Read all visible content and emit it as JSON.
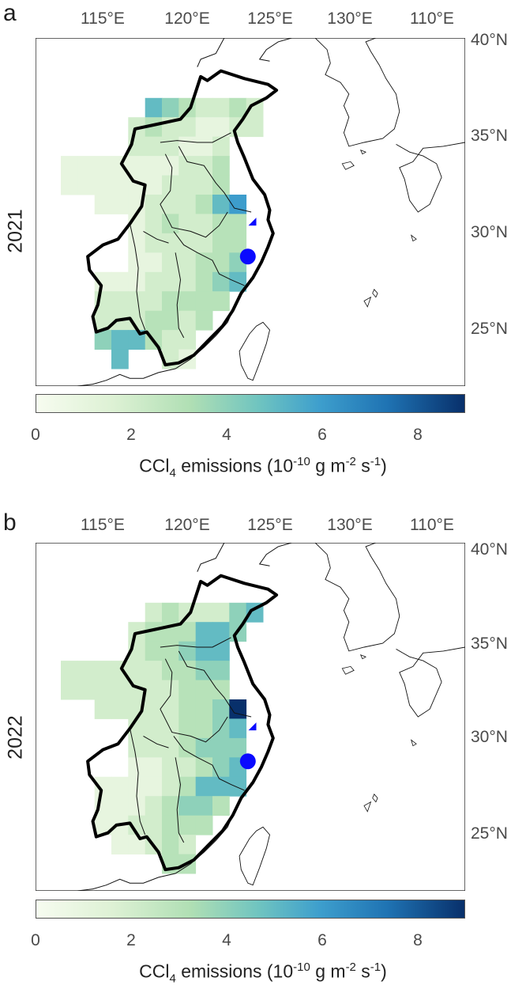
{
  "panels": [
    {
      "letter": "a",
      "year": "2021",
      "grid_key": "g2021",
      "colorbar_label": {
        "pre": "CCl",
        "sub": "4",
        "mid": " emissions (10",
        "sup1": "-10",
        "mid2": " g m",
        "sup2": "-2",
        "mid3": " s",
        "sup3": "-1",
        "end": ")"
      }
    },
    {
      "letter": "b",
      "year": "2022",
      "grid_key": "g2022",
      "colorbar_label": {
        "pre": "CCl",
        "sub": "4",
        "mid": " emissions (10",
        "sup1": "-10",
        "mid2": " g m",
        "sup2": "-2",
        "mid3": " s",
        "sup3": "-1",
        "end": ")"
      }
    }
  ],
  "lon_labels": [
    "115°E",
    "120°E",
    "125°E",
    "130°E",
    "110°E"
  ],
  "lat_labels": [
    "40°N",
    "35°N",
    "30°N",
    "25°N"
  ],
  "colorbar": {
    "min": 0,
    "max": 9,
    "ticks": [
      "0",
      "2",
      "4",
      "6",
      "8"
    ],
    "tick_values": [
      0,
      2,
      4,
      6,
      8
    ]
  },
  "markers": [
    {
      "shape": "triangle",
      "lon": 121.1,
      "lat": 30.3,
      "color": "#0a0aff"
    },
    {
      "shape": "circle",
      "lon": 120.6,
      "lat": 28.7,
      "color": "#0a0aff"
    }
  ],
  "grid_spec": {
    "lon0": 109.5,
    "lat0": 37.9,
    "step": 1.0
  },
  "emissions": {
    "g2021": [
      [
        "",
        "",
        "",
        "",
        "",
        "",
        "",
        "",
        "",
        "",
        "",
        "",
        "",
        "",
        ""
      ],
      [
        "",
        "",
        "",
        "",
        "",
        "5",
        "4",
        "3",
        "2",
        "2",
        "3",
        "2",
        "",
        "",
        ""
      ],
      [
        "",
        "",
        "",
        "",
        "2",
        "3",
        "2",
        "2",
        "1",
        "1",
        "2",
        "2",
        "",
        "",
        ""
      ],
      [
        "",
        "",
        "",
        "",
        "2",
        "2",
        "2",
        "1",
        "1",
        "2",
        "",
        "",
        "",
        "",
        ""
      ],
      [
        "1",
        "1",
        "1",
        "1",
        "1",
        "1",
        "1",
        "2",
        "2",
        "3",
        "",
        "",
        "",
        "",
        ""
      ],
      [
        "1",
        "1",
        "1",
        "1",
        "1",
        "1",
        "2",
        "2",
        "2",
        "3",
        "",
        "",
        "",
        "",
        ""
      ],
      [
        "",
        "",
        "1",
        "1",
        "1",
        "2",
        "2",
        "2",
        "3",
        "5",
        "6",
        "",
        "",
        "",
        ""
      ],
      [
        "",
        "",
        "",
        "",
        "1",
        "2",
        "3",
        "2",
        "2",
        "3",
        "3",
        "",
        "",
        "",
        ""
      ],
      [
        "",
        "",
        "",
        "",
        "1",
        "2",
        "2",
        "2",
        "2",
        "3",
        "3",
        "",
        "",
        "",
        ""
      ],
      [
        "",
        "",
        "",
        "",
        "1",
        "1",
        "2",
        "2",
        "3",
        "3",
        "4",
        "",
        "",
        "",
        ""
      ],
      [
        "",
        "",
        "1",
        "1",
        "1",
        "2",
        "2",
        "2",
        "3",
        "4",
        "5",
        "",
        "",
        "",
        ""
      ],
      [
        "",
        "",
        "2",
        "2",
        "2",
        "2",
        "3",
        "3",
        "3",
        "3",
        "",
        "",
        "",
        "",
        ""
      ],
      [
        "",
        "",
        "2",
        "2",
        "2",
        "3",
        "3",
        "2",
        "3",
        "",
        "",
        "",
        "",
        "",
        ""
      ],
      [
        "",
        "",
        "4",
        "5",
        "5",
        "3",
        "2",
        "2",
        "",
        "",
        "",
        "",
        "",
        "",
        ""
      ],
      [
        "",
        "",
        "",
        "5",
        "",
        "",
        "2",
        "1",
        "",
        "",
        "",
        "",
        "",
        "",
        ""
      ]
    ],
    "g2022": [
      [
        "",
        "",
        "",
        "",
        "",
        "",
        "",
        "",
        "",
        "",
        "",
        "",
        "",
        "",
        ""
      ],
      [
        "",
        "",
        "",
        "",
        "",
        "2",
        "3",
        "2",
        "2",
        "2",
        "4",
        "5",
        "",
        "",
        ""
      ],
      [
        "",
        "",
        "",
        "",
        "2",
        "3",
        "3",
        "3",
        "5",
        "5",
        "4",
        "",
        "",
        "",
        ""
      ],
      [
        "",
        "",
        "",
        "",
        "2",
        "3",
        "3",
        "4",
        "5",
        "5",
        "",
        "",
        "",
        "",
        ""
      ],
      [
        "2",
        "2",
        "2",
        "2",
        "2",
        "2",
        "3",
        "3",
        "4",
        "4",
        "",
        "",
        "",
        "",
        ""
      ],
      [
        "2",
        "2",
        "2",
        "2",
        "2",
        "2",
        "2",
        "3",
        "3",
        "3",
        "",
        "",
        "",
        "",
        ""
      ],
      [
        "",
        "",
        "2",
        "2",
        "2",
        "2",
        "2",
        "3",
        "3",
        "4",
        "9",
        "",
        "",
        "",
        ""
      ],
      [
        "",
        "",
        "",
        "",
        "2",
        "2",
        "2",
        "3",
        "3",
        "4",
        "5",
        "",
        "",
        "",
        ""
      ],
      [
        "",
        "",
        "",
        "",
        "2",
        "2",
        "2",
        "3",
        "4",
        "4",
        "4",
        "",
        "",
        "",
        ""
      ],
      [
        "",
        "",
        "",
        "",
        "1",
        "1",
        "2",
        "2",
        "3",
        "4",
        "5",
        "",
        "",
        "",
        ""
      ],
      [
        "",
        "",
        "1",
        "1",
        "1",
        "1",
        "2",
        "3",
        "5",
        "5",
        "5",
        "",
        "",
        "",
        ""
      ],
      [
        "",
        "",
        "1",
        "1",
        "1",
        "2",
        "3",
        "4",
        "4",
        "3",
        "",
        "",
        "",
        "",
        ""
      ],
      [
        "",
        "",
        "1",
        "1",
        "2",
        "2",
        "3",
        "3",
        "3",
        "",
        "",
        "",
        "",
        "",
        ""
      ],
      [
        "",
        "",
        "",
        "1",
        "1",
        "2",
        "3",
        "2",
        "",
        "",
        "",
        "",
        "",
        "",
        ""
      ],
      [
        "",
        "",
        "",
        "",
        "",
        "",
        "3",
        "3",
        "",
        "",
        "",
        "",
        "",
        "",
        ""
      ]
    ]
  }
}
